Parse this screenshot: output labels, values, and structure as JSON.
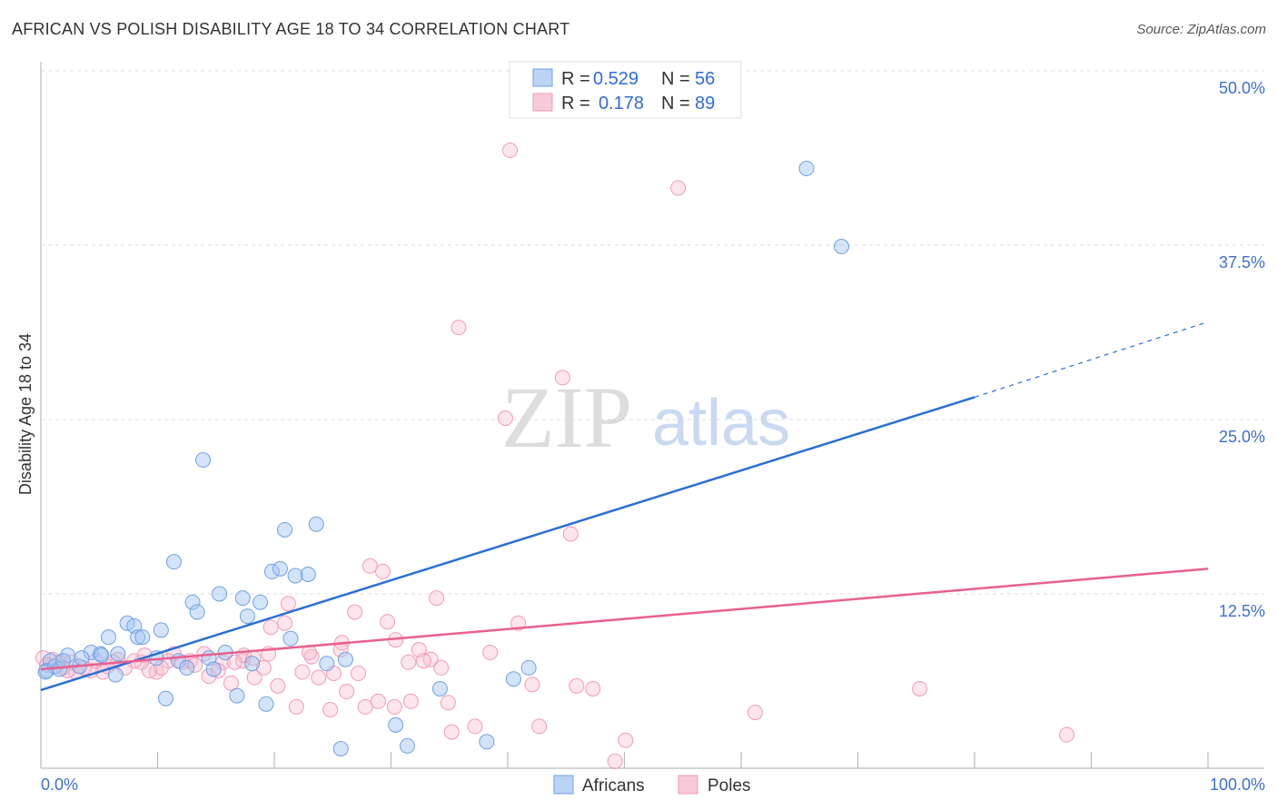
{
  "title": "AFRICAN VS POLISH DISABILITY AGE 18 TO 34 CORRELATION CHART",
  "source": "Source: ZipAtlas.com",
  "watermark": {
    "zip": "ZIP",
    "atlas": "atlas"
  },
  "colors": {
    "africans": "#6fa0e8",
    "poles": "#f29bb5",
    "africans_line": "#2a6fd6",
    "poles_line": "#e8608e",
    "tick": "#3d6fd0"
  },
  "chart_data": {
    "type": "scatter",
    "title": "AFRICAN VS POLISH DISABILITY AGE 18 TO 34 CORRELATION CHART",
    "xlabel": "",
    "ylabel": "Disability Age 18 to 34",
    "xlim": [
      0,
      100
    ],
    "ylim": [
      0,
      50
    ],
    "x_tick_labels": [
      {
        "value": 0,
        "label": "0.0%"
      },
      {
        "value": 100,
        "label": "100.0%"
      }
    ],
    "y_tick_labels": [
      {
        "value": 12.5,
        "label": "12.5%"
      },
      {
        "value": 25,
        "label": "25.0%"
      },
      {
        "value": 37.5,
        "label": "37.5%"
      },
      {
        "value": 50,
        "label": "50.0%"
      }
    ],
    "grid": "horizontal dashed",
    "legend_placement": "top-center",
    "stats": [
      {
        "r_label": "R =",
        "r": "0.529",
        "n_label": "N =",
        "n": "56"
      },
      {
        "r_label": "R =",
        "r": "0.178",
        "n_label": "N =",
        "n": "89"
      }
    ],
    "series": [
      {
        "name": "Africans",
        "trend": {
          "x": [
            0,
            80,
            100
          ],
          "y": [
            5.6,
            26.6,
            32.0
          ],
          "solid_until": 80
        },
        "points": [
          [
            65.6,
            43.0
          ],
          [
            68.6,
            37.4
          ],
          [
            13.9,
            22.1
          ],
          [
            23.6,
            17.5
          ],
          [
            20.9,
            17.1
          ],
          [
            11.4,
            14.8
          ],
          [
            19.8,
            14.1
          ],
          [
            20.5,
            14.3
          ],
          [
            21.8,
            13.8
          ],
          [
            22.9,
            13.9
          ],
          [
            15.3,
            12.5
          ],
          [
            13.0,
            11.9
          ],
          [
            17.3,
            12.2
          ],
          [
            18.8,
            11.9
          ],
          [
            13.4,
            11.2
          ],
          [
            17.7,
            10.9
          ],
          [
            7.4,
            10.4
          ],
          [
            8.0,
            10.2
          ],
          [
            10.3,
            9.9
          ],
          [
            5.8,
            9.4
          ],
          [
            8.3,
            9.4
          ],
          [
            8.7,
            9.4
          ],
          [
            21.4,
            9.3
          ],
          [
            4.3,
            8.3
          ],
          [
            5.1,
            8.2
          ],
          [
            2.3,
            8.1
          ],
          [
            5.2,
            8.1
          ],
          [
            6.6,
            8.2
          ],
          [
            15.8,
            8.3
          ],
          [
            9.9,
            7.9
          ],
          [
            11.8,
            7.7
          ],
          [
            14.4,
            7.9
          ],
          [
            26.1,
            7.8
          ],
          [
            24.5,
            7.5
          ],
          [
            18.1,
            7.5
          ],
          [
            12.5,
            7.2
          ],
          [
            14.8,
            7.1
          ],
          [
            0.8,
            7.7
          ],
          [
            0.5,
            7.0
          ],
          [
            1.2,
            7.3
          ],
          [
            1.6,
            7.1
          ],
          [
            3.3,
            7.3
          ],
          [
            6.4,
            6.7
          ],
          [
            41.8,
            7.2
          ],
          [
            40.5,
            6.4
          ],
          [
            34.2,
            5.7
          ],
          [
            16.8,
            5.2
          ],
          [
            10.7,
            5.0
          ],
          [
            19.3,
            4.6
          ],
          [
            30.4,
            3.1
          ],
          [
            38.2,
            1.9
          ],
          [
            31.4,
            1.6
          ],
          [
            25.7,
            1.4
          ],
          [
            0.4,
            6.9
          ],
          [
            1.9,
            7.7
          ],
          [
            3.5,
            7.9
          ]
        ]
      },
      {
        "name": "Poles",
        "trend": {
          "x": [
            0,
            100
          ],
          "y": [
            7.1,
            14.3
          ]
        },
        "points": [
          [
            40.2,
            44.3
          ],
          [
            54.6,
            41.6
          ],
          [
            35.8,
            31.6
          ],
          [
            44.7,
            28.0
          ],
          [
            39.8,
            25.1
          ],
          [
            45.4,
            16.8
          ],
          [
            28.2,
            14.5
          ],
          [
            29.3,
            14.1
          ],
          [
            33.9,
            12.2
          ],
          [
            21.2,
            11.8
          ],
          [
            26.9,
            11.2
          ],
          [
            20.9,
            10.4
          ],
          [
            29.7,
            10.5
          ],
          [
            40.9,
            10.4
          ],
          [
            19.7,
            10.1
          ],
          [
            25.8,
            9.0
          ],
          [
            30.4,
            9.2
          ],
          [
            32.4,
            8.5
          ],
          [
            38.5,
            8.3
          ],
          [
            23.2,
            8.0
          ],
          [
            33.4,
            7.8
          ],
          [
            75.3,
            5.7
          ],
          [
            61.2,
            4.0
          ],
          [
            87.9,
            2.4
          ],
          [
            50.1,
            2.0
          ],
          [
            49.2,
            0.5
          ],
          [
            45.9,
            5.9
          ],
          [
            47.3,
            5.7
          ],
          [
            42.1,
            6.0
          ],
          [
            34.9,
            4.7
          ],
          [
            35.2,
            2.6
          ],
          [
            37.2,
            3.0
          ],
          [
            42.7,
            3.0
          ],
          [
            28.9,
            4.8
          ],
          [
            31.7,
            4.8
          ],
          [
            30.3,
            4.4
          ],
          [
            27.8,
            4.4
          ],
          [
            26.2,
            5.5
          ],
          [
            24.8,
            4.2
          ],
          [
            21.9,
            4.4
          ],
          [
            20.3,
            5.9
          ],
          [
            18.3,
            6.5
          ],
          [
            16.3,
            6.1
          ],
          [
            14.4,
            6.6
          ],
          [
            27.2,
            6.8
          ],
          [
            25.1,
            6.8
          ],
          [
            23.8,
            6.5
          ],
          [
            22.4,
            6.9
          ],
          [
            19.1,
            7.2
          ],
          [
            17.3,
            7.7
          ],
          [
            17.4,
            8.1
          ],
          [
            18.2,
            7.9
          ],
          [
            15.6,
            7.6
          ],
          [
            14.0,
            8.2
          ],
          [
            12.8,
            7.7
          ],
          [
            11.4,
            8.2
          ],
          [
            10.9,
            7.7
          ],
          [
            9.9,
            6.9
          ],
          [
            10.3,
            7.2
          ],
          [
            9.3,
            7.0
          ],
          [
            8.6,
            7.6
          ],
          [
            8.0,
            7.7
          ],
          [
            7.2,
            7.2
          ],
          [
            6.6,
            7.8
          ],
          [
            5.7,
            7.3
          ],
          [
            5.3,
            6.9
          ],
          [
            4.3,
            7.0
          ],
          [
            3.7,
            7.2
          ],
          [
            3.0,
            6.9
          ],
          [
            2.3,
            7.0
          ],
          [
            1.6,
            7.6
          ],
          [
            1.0,
            7.8
          ],
          [
            0.2,
            7.9
          ],
          [
            0.5,
            7.4
          ],
          [
            1.9,
            7.2
          ],
          [
            2.6,
            7.6
          ],
          [
            4.7,
            7.7
          ],
          [
            6.2,
            7.6
          ],
          [
            8.9,
            8.1
          ],
          [
            12.1,
            7.6
          ],
          [
            13.2,
            7.4
          ],
          [
            15.2,
            7.0
          ],
          [
            16.6,
            7.6
          ],
          [
            19.5,
            8.2
          ],
          [
            23.0,
            8.3
          ],
          [
            25.7,
            8.5
          ],
          [
            31.5,
            7.6
          ],
          [
            34.3,
            7.2
          ],
          [
            32.8,
            7.7
          ]
        ]
      }
    ]
  }
}
